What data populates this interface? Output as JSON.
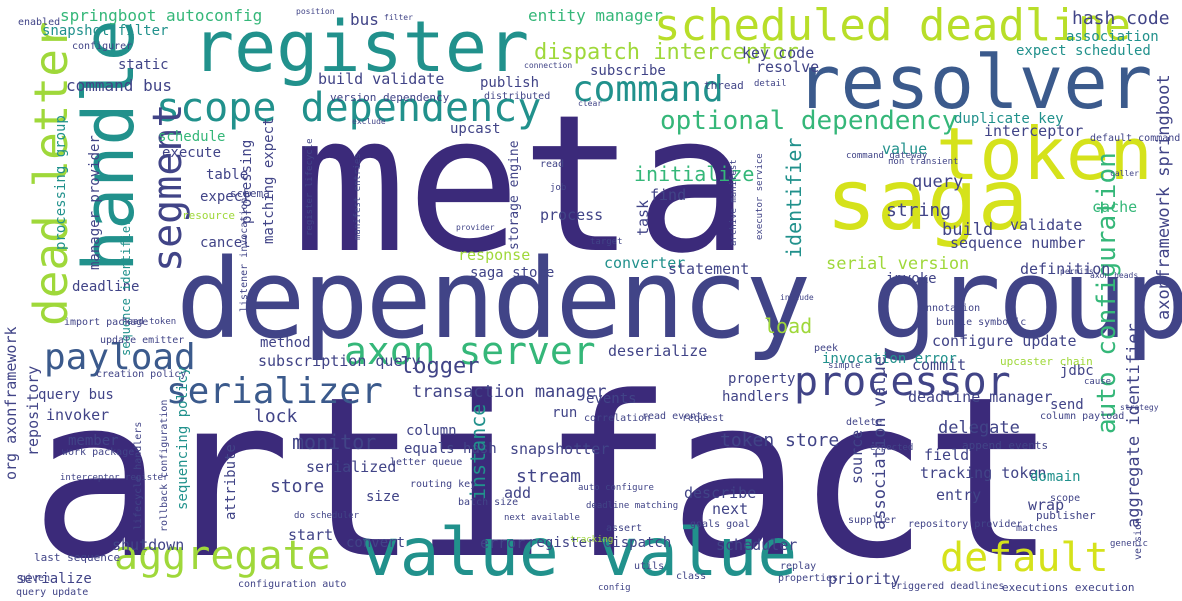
{
  "palette": {
    "purple": "#3b2a7a",
    "indigo": "#414487",
    "blue": "#3b5a8c",
    "teal": "#21918c",
    "green": "#35b779",
    "lime": "#9fd83a",
    "yellow": "#d5e21b"
  },
  "words": {
    "meta": "meta",
    "artifact": "artifact",
    "dependency_group": "dependency group",
    "value_value": "value value",
    "register": "register",
    "resolver": "resolver",
    "token": "token",
    "saga": "saga",
    "handle": "handle",
    "scheduled_deadline": "scheduled deadline",
    "scope_dependency": "scope dependency",
    "command": "command",
    "dead_letter": "dead letter",
    "segment": "segment",
    "payload": "payload",
    "axon_server": "axon server",
    "processor": "processor",
    "serializer": "serializer",
    "aggregate": "aggregate",
    "default": "default",
    "auto_configuration": "auto configuration",
    "optional_dependency": "optional dependency",
    "dispatch_interceptor": "dispatch interceptor",
    "entity_manager": "entity manager",
    "hash_code": "hash code",
    "springboot_autoconfig": "springboot autoconfig",
    "bus": "bus",
    "association": "association",
    "snapshot_filter": "snapshot filter",
    "key_code": "key code",
    "expect_scheduled": "expect scheduled",
    "command_bus": "command bus",
    "build_validate": "build validate",
    "publish": "publish",
    "subscribe": "subscribe",
    "resolve": "resolve",
    "static": "static",
    "identifier": "identifier",
    "axonframework_springboot": "axonframework springboot",
    "duplicate_key": "duplicate key",
    "interceptor": "interceptor",
    "initialize": "initialize",
    "schedule": "schedule",
    "execute": "execute",
    "table": "table",
    "expect": "expect",
    "cancel": "cancel",
    "processing_group": "processing group",
    "dead_letter_small": "deadline",
    "upcast": "upcast",
    "find": "find",
    "process": "process",
    "string": "string",
    "build": "build",
    "validate": "validate",
    "cache": "cache",
    "query": "query",
    "value": "value",
    "sequence_number": "sequence number",
    "serial_version": "serial version",
    "definition": "definition",
    "converter": "converter",
    "load": "load",
    "response": "response",
    "saga_store": "saga store",
    "statement": "statement",
    "invoke": "invoke",
    "configure_update": "configure update",
    "method": "method",
    "subscription_query": "subscription query",
    "deserialize": "deserialize",
    "logger": "logger",
    "transaction_manager": "transaction manager",
    "property": "property",
    "handlers": "handlers",
    "commit": "commit",
    "jdbc": "jdbc",
    "deadline_manager": "deadline manager",
    "invocation_error": "invocation error",
    "monitor": "monitor",
    "lock": "lock",
    "column": "column",
    "equals_hash": "equals hash",
    "snapshotter": "snapshotter",
    "token_store": "token store",
    "delegate": "delegate",
    "association_value": "association value",
    "aggregate_identifier": "aggregate identifier",
    "org_axonframework": "org axonframework",
    "repository": "repository",
    "query_bus": "query bus",
    "invoker": "invoker",
    "member": "member",
    "sequencing_policy": "sequencing policy",
    "attribute": "attribute",
    "serialized": "serialized",
    "store": "store",
    "size": "size",
    "stream": "stream",
    "add": "add",
    "instance": "instance",
    "source": "source",
    "describe": "describe",
    "next": "next",
    "field": "field",
    "tracking_token": "tracking token",
    "entry": "entry",
    "wrap": "wrap",
    "domain": "domain",
    "shutdown": "shutdown",
    "start": "start",
    "convert": "convert",
    "error": "error",
    "register_dispatch": "register dispatch",
    "scheduler": "scheduler",
    "serialize": "serialize",
    "priority": "priority",
    "configuration_auto": "configuration auto",
    "task": "task",
    "run": "run",
    "events": "events",
    "send": "send",
    "manager_provider": "manager provider",
    "sequence_identifier": "sequence identifier",
    "matching_expect": "matching expect",
    "storage_engine": "storage engine",
    "processing": "processing",
    "enabled": "enabled",
    "configurer": "configurer",
    "schema": "schema",
    "resource": "resource",
    "filter": "filter",
    "position": "position",
    "version_dependency": "version dependency",
    "thread": "thread",
    "detail": "detail",
    "distributed": "distributed",
    "upcaster_chain": "upcaster chain",
    "column_payload": "column payload",
    "append_events": "append events",
    "annotation": "annotation",
    "correlation": "correlation",
    "request": "request",
    "delete": "delete",
    "last_sequence": "last sequence",
    "query_update": "query update",
    "given": "given",
    "utils": "utils",
    "replay": "replay",
    "config": "config",
    "properties": "properties",
    "executions_execution": "executions execution",
    "scope": "scope",
    "publisher": "publisher",
    "matches": "matches",
    "batch_size": "batch size",
    "routing_key": "routing key",
    "next_available": "next available",
    "read_events": "read events",
    "peek": "peek",
    "simple": "simple",
    "update_emitter": "update emitter",
    "creation_policy": "creation policy",
    "import_package": "import package",
    "work_package": "work package",
    "lifecycle_handlers": "lifecycle handlers",
    "rollback_configuration": "rollback configuration",
    "goals_goal": "goals goal",
    "triggered_deadlines": "triggered deadlines",
    "repository_provider": "repository provider",
    "default_command": "default command",
    "version": "version",
    "cause": "cause",
    "expected": "expected",
    "supplier": "supplier",
    "assert": "assert",
    "class": "class",
    "letter_queue": "letter queue",
    "auto_configure": "auto configure",
    "deadline_matching": "deadline matching",
    "do_scheduler": "do scheduler",
    "head_token": "head token",
    "listener_invocation": "listener invocation",
    "register_lifecycle": "register lifecycle",
    "manifest_entries": "manifest entries",
    "archive_manifest": "archive manifest",
    "executor_service": "executor service",
    "non_transient": "non transient",
    "command_gateway": "command gateway",
    "bundle_symbolic": "bundle symbolic",
    "connection": "connection",
    "provider": "provider",
    "target": "target",
    "read": "read",
    "job": "job",
    "clear": "clear",
    "exclude": "exclude",
    "interceptor_register": "interceptor register",
    "axon_heads": "axon heads",
    "permits": "permits",
    "include": "include",
    "tracking": "tracking",
    "generic": "generic",
    "strategy": "strategy",
    "caller": "caller"
  }
}
